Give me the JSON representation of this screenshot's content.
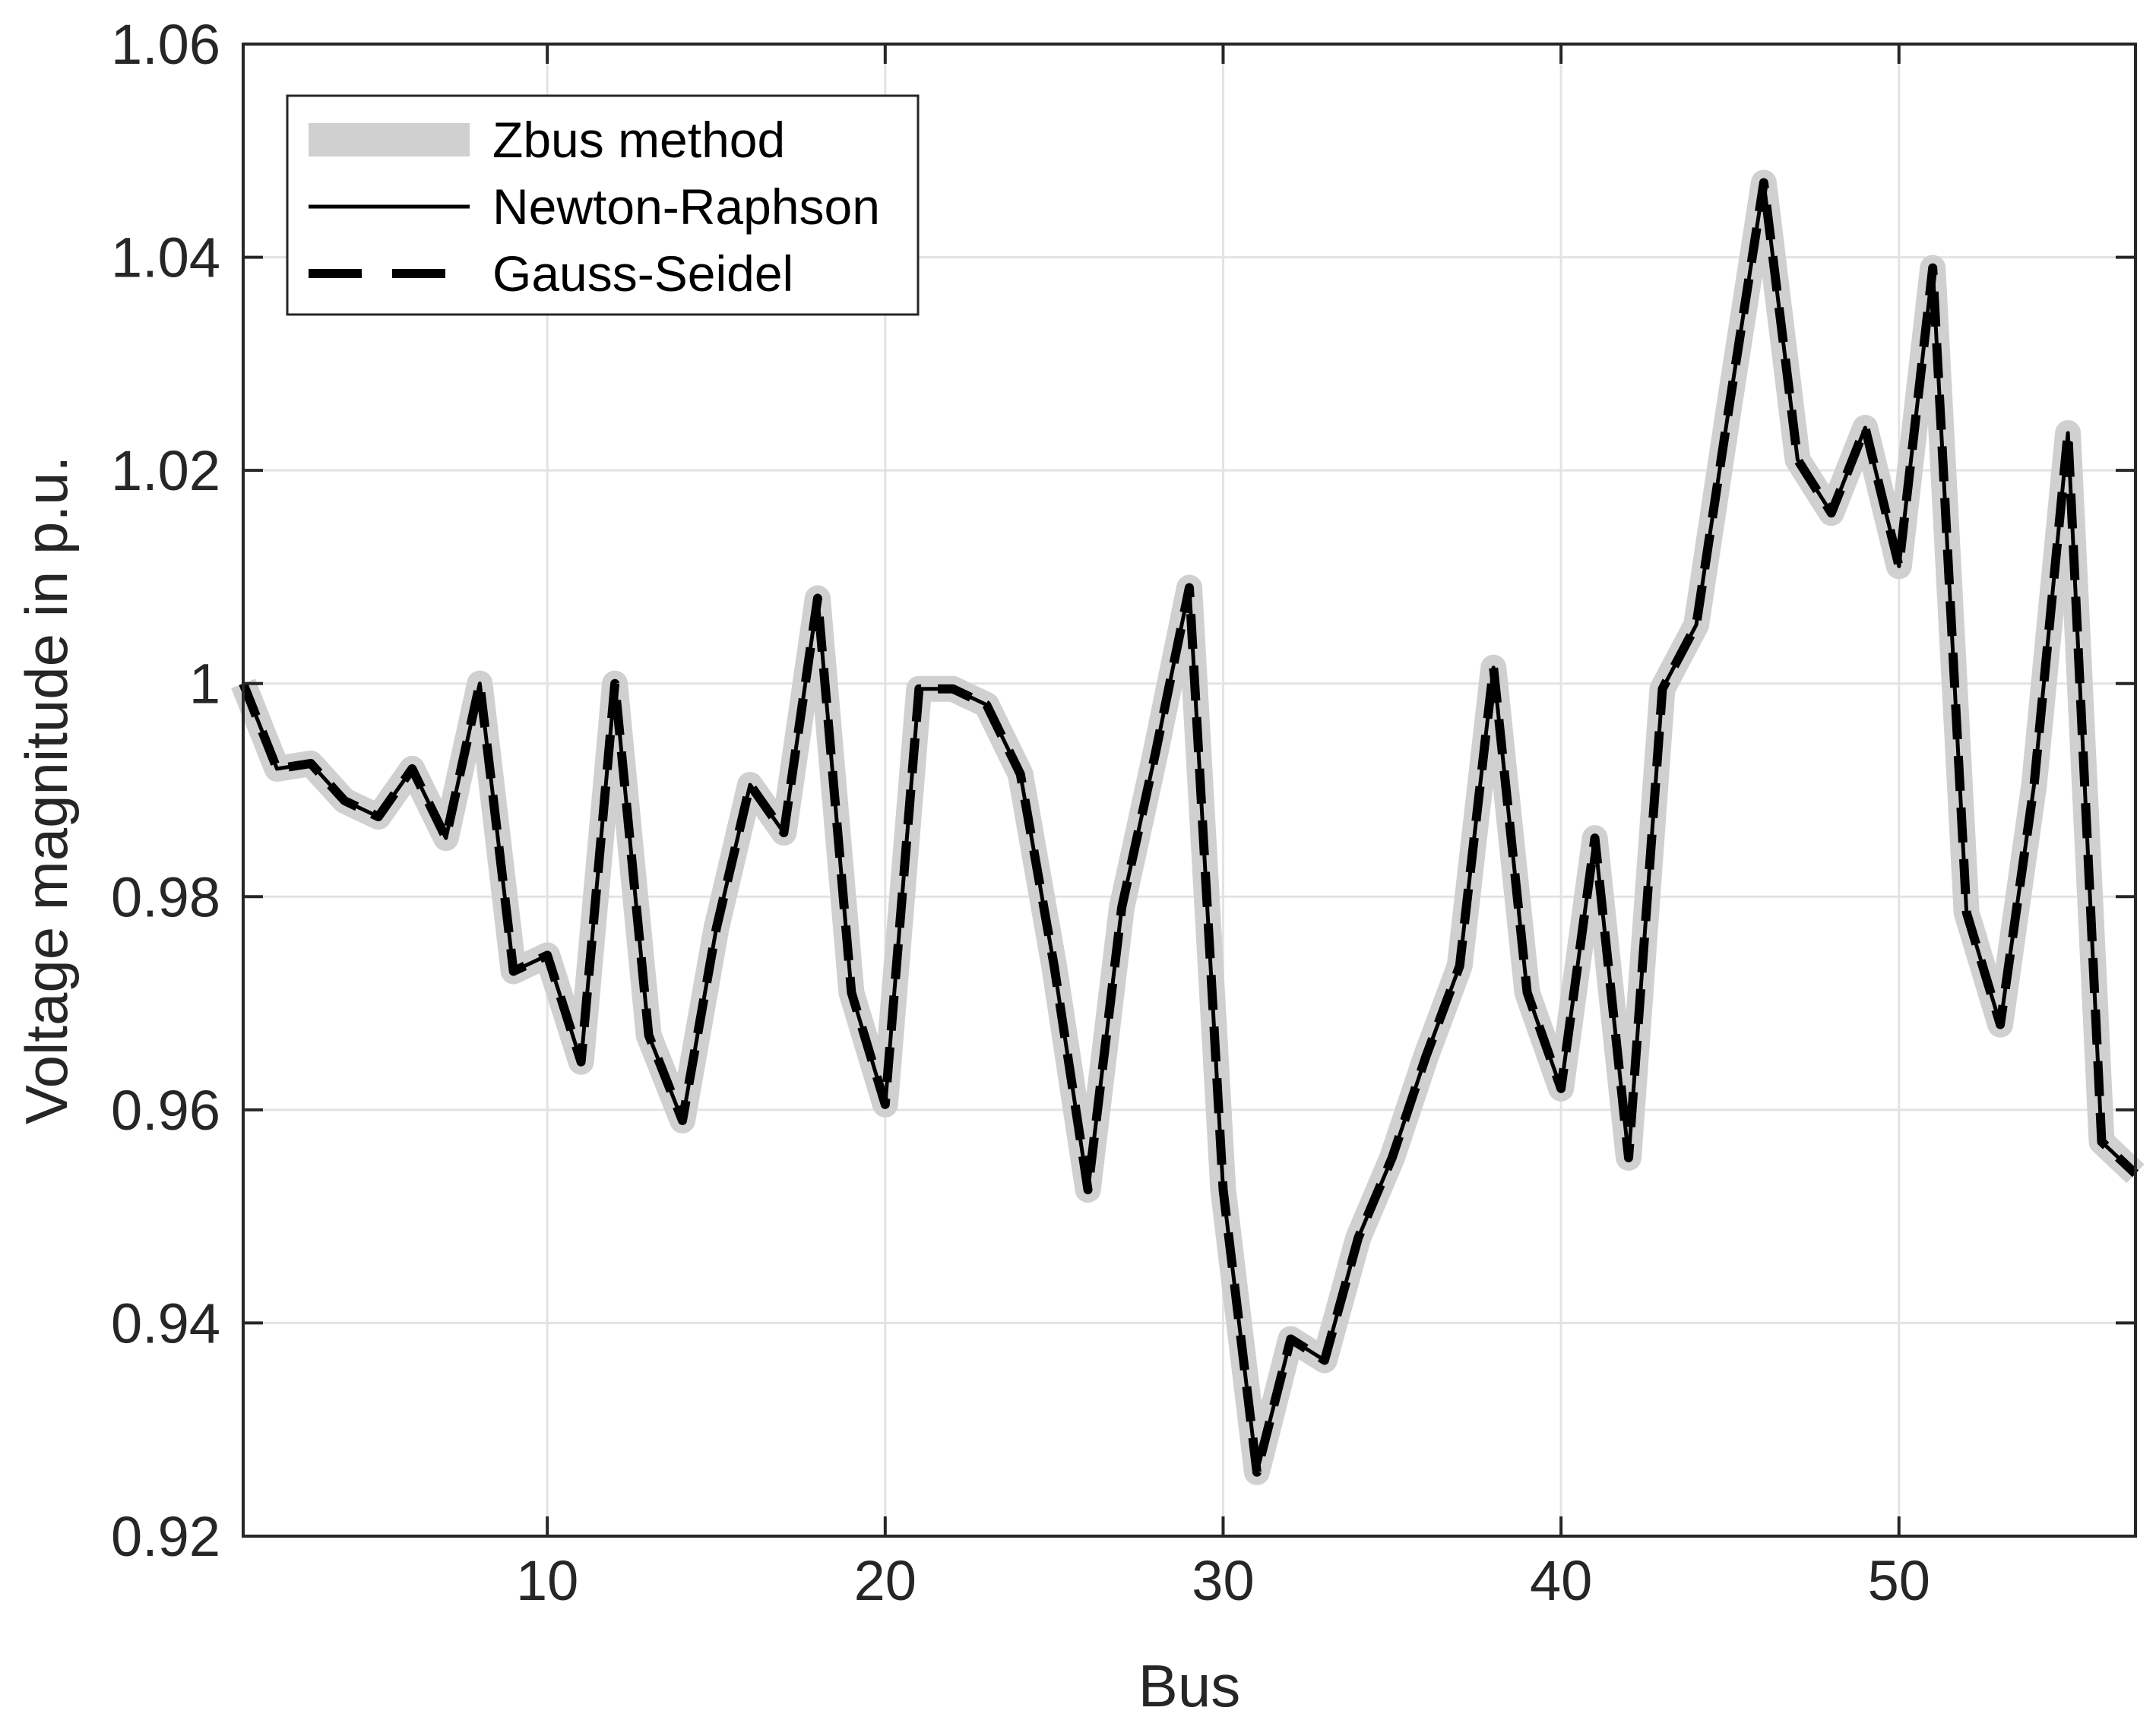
{
  "chart_data": {
    "type": "line",
    "title": "",
    "xlabel": "Bus",
    "ylabel": "Voltage magnitude in p.u.",
    "xlim": [
      1,
      57
    ],
    "ylim": [
      0.92,
      1.06
    ],
    "xticks": [
      10,
      20,
      30,
      40,
      50
    ],
    "yticks": [
      0.92,
      0.94,
      0.96,
      0.98,
      1,
      1.02,
      1.04,
      1.06
    ],
    "ytick_labels": [
      "0.92",
      "0.94",
      "0.96",
      "0.98",
      "1",
      "1.02",
      "1.04",
      "1.06"
    ],
    "grid": true,
    "legend_position": "top-left",
    "x": [
      1,
      2,
      3,
      4,
      5,
      6,
      7,
      8,
      9,
      10,
      11,
      12,
      13,
      14,
      15,
      16,
      17,
      18,
      19,
      20,
      21,
      22,
      23,
      24,
      25,
      26,
      27,
      28,
      29,
      30,
      31,
      32,
      33,
      34,
      35,
      36,
      37,
      38,
      39,
      40,
      41,
      42,
      43,
      44,
      45,
      46,
      47,
      48,
      49,
      50,
      51,
      52,
      53,
      54,
      55,
      56,
      57
    ],
    "series": [
      {
        "name": "Zbus method",
        "style": "thick-gray",
        "color": "#d0d0d0",
        "values": [
          1.0,
          0.992,
          0.9925,
          0.989,
          0.9875,
          0.992,
          0.9855,
          1.0,
          0.973,
          0.9745,
          0.9645,
          1.0,
          0.967,
          0.959,
          0.977,
          0.9905,
          0.986,
          1.008,
          0.971,
          0.9605,
          0.9995,
          0.9995,
          0.998,
          0.9915,
          0.9735,
          0.9525,
          0.979,
          0.9935,
          1.009,
          0.9525,
          0.926,
          0.9385,
          0.9365,
          0.948,
          0.9555,
          0.965,
          0.9735,
          1.0015,
          0.971,
          0.962,
          0.9855,
          0.9555,
          0.9995,
          1.0055,
          1.0265,
          1.047,
          1.021,
          1.016,
          1.024,
          1.011,
          1.039,
          0.9785,
          0.968,
          0.9905,
          1.0235,
          0.957,
          0.954
        ]
      },
      {
        "name": "Newton-Raphson",
        "style": "solid",
        "color": "#000000",
        "values": [
          1.0,
          0.992,
          0.9925,
          0.989,
          0.9875,
          0.992,
          0.9855,
          1.0,
          0.973,
          0.9745,
          0.9645,
          1.0,
          0.967,
          0.959,
          0.977,
          0.9905,
          0.986,
          1.008,
          0.971,
          0.9605,
          0.9995,
          0.9995,
          0.998,
          0.9915,
          0.9735,
          0.9525,
          0.979,
          0.9935,
          1.009,
          0.9525,
          0.926,
          0.9385,
          0.9365,
          0.948,
          0.9555,
          0.965,
          0.9735,
          1.0015,
          0.971,
          0.962,
          0.9855,
          0.9555,
          0.9995,
          1.0055,
          1.0265,
          1.047,
          1.021,
          1.016,
          1.024,
          1.011,
          1.039,
          0.9785,
          0.968,
          0.9905,
          1.0235,
          0.957,
          0.954
        ]
      },
      {
        "name": "Gauss-Seidel",
        "style": "dashed",
        "color": "#000000",
        "values": [
          1.0,
          0.992,
          0.9925,
          0.989,
          0.9875,
          0.992,
          0.9855,
          1.0,
          0.973,
          0.9745,
          0.9645,
          1.0,
          0.967,
          0.959,
          0.977,
          0.9905,
          0.986,
          1.008,
          0.971,
          0.9605,
          0.9995,
          0.9995,
          0.998,
          0.9915,
          0.9735,
          0.9525,
          0.979,
          0.9935,
          1.009,
          0.9525,
          0.926,
          0.9385,
          0.9365,
          0.948,
          0.9555,
          0.965,
          0.9735,
          1.0015,
          0.971,
          0.962,
          0.9855,
          0.9555,
          0.9995,
          1.0055,
          1.0265,
          1.047,
          1.021,
          1.016,
          1.024,
          1.011,
          1.039,
          0.9785,
          0.968,
          0.9905,
          1.0235,
          0.957,
          0.954
        ]
      }
    ]
  }
}
